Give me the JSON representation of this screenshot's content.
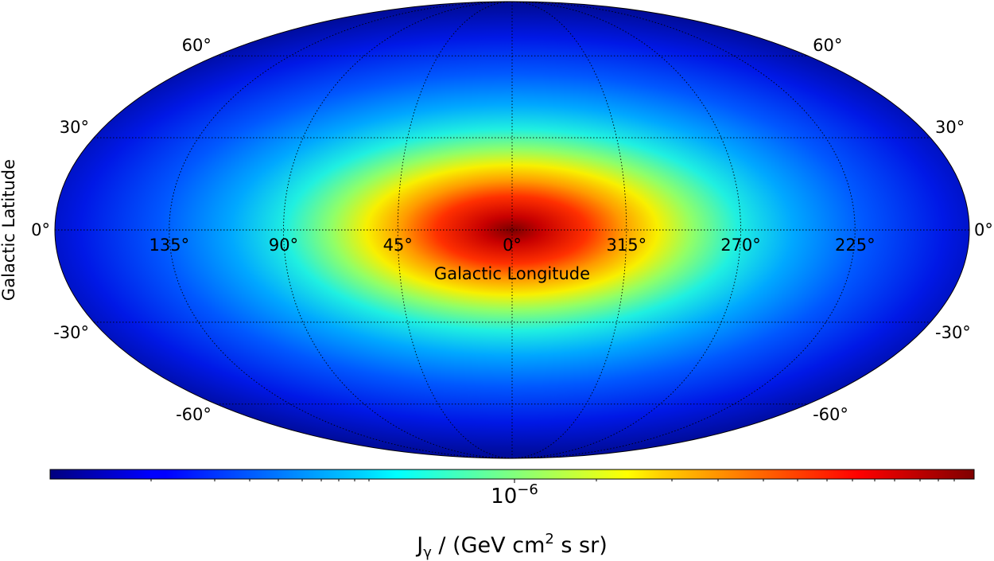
{
  "chart_data": {
    "type": "heatmap",
    "projection": "mollweide",
    "xlabel": "Galactic Longitude",
    "ylabel": "Galactic Latitude",
    "grid": true,
    "longitude_ticks": [
      {
        "value": 135,
        "label": "135°"
      },
      {
        "value": 90,
        "label": "90°"
      },
      {
        "value": 45,
        "label": "45°"
      },
      {
        "value": 0,
        "label": "0°"
      },
      {
        "value": 315,
        "label": "315°"
      },
      {
        "value": 270,
        "label": "270°"
      },
      {
        "value": 225,
        "label": "225°"
      }
    ],
    "latitude_ticks": [
      {
        "value": 60,
        "label": "60°"
      },
      {
        "value": 30,
        "label": "30°"
      },
      {
        "value": 0,
        "label": "0°"
      },
      {
        "value": -30,
        "label": "-30°"
      },
      {
        "value": -60,
        "label": "-60°"
      }
    ],
    "colorbar": {
      "colormap": "jet",
      "scale": "log",
      "tick_label_base": "10",
      "tick_label_exponent": "−6",
      "label_prefix": "J",
      "label_subscript": "γ",
      "label_main": " / (GeV cm",
      "label_superscript": "2",
      "label_suffix": " s sr)",
      "placement": "bottom"
    },
    "peak": {
      "longitude": 0,
      "latitude": 0
    }
  }
}
